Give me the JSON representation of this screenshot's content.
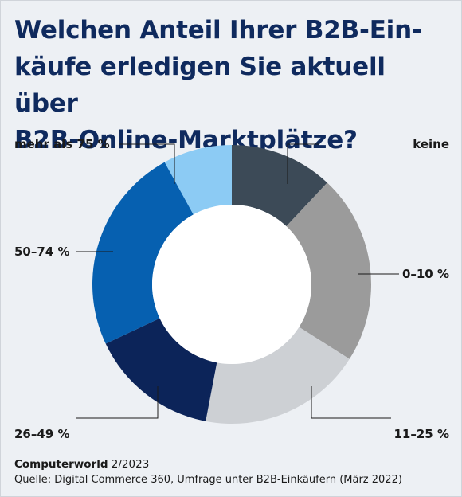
{
  "header": {
    "title_lines": [
      "Welchen Anteil Ihrer B2B-Ein-",
      "käufe erledigen Sie aktuell über",
      "B2B-Online-Marktplätze?"
    ]
  },
  "chart_data": {
    "type": "pie",
    "variant": "donut",
    "categories": [
      "keine",
      "0–10 %",
      "11–25 %",
      "26–49 %",
      "50–74 %",
      "mehr als 75 %"
    ],
    "values": [
      12,
      22,
      19,
      15,
      24,
      8
    ],
    "colors": [
      "#3c4a57",
      "#9b9b9b",
      "#cdd0d4",
      "#0c2459",
      "#0660b0",
      "#8ccbf4"
    ],
    "legend": "none",
    "title": "Welchen Anteil Ihrer B2B-Einkäufe erledigen Sie aktuell über B2B-Online-Marktplätze?"
  },
  "footer": {
    "publication": "Computerworld",
    "issue": "2/2023",
    "source": "Quelle: Digital Commerce 360, Umfrage unter B2B-Einkäufern (März 2022)"
  }
}
